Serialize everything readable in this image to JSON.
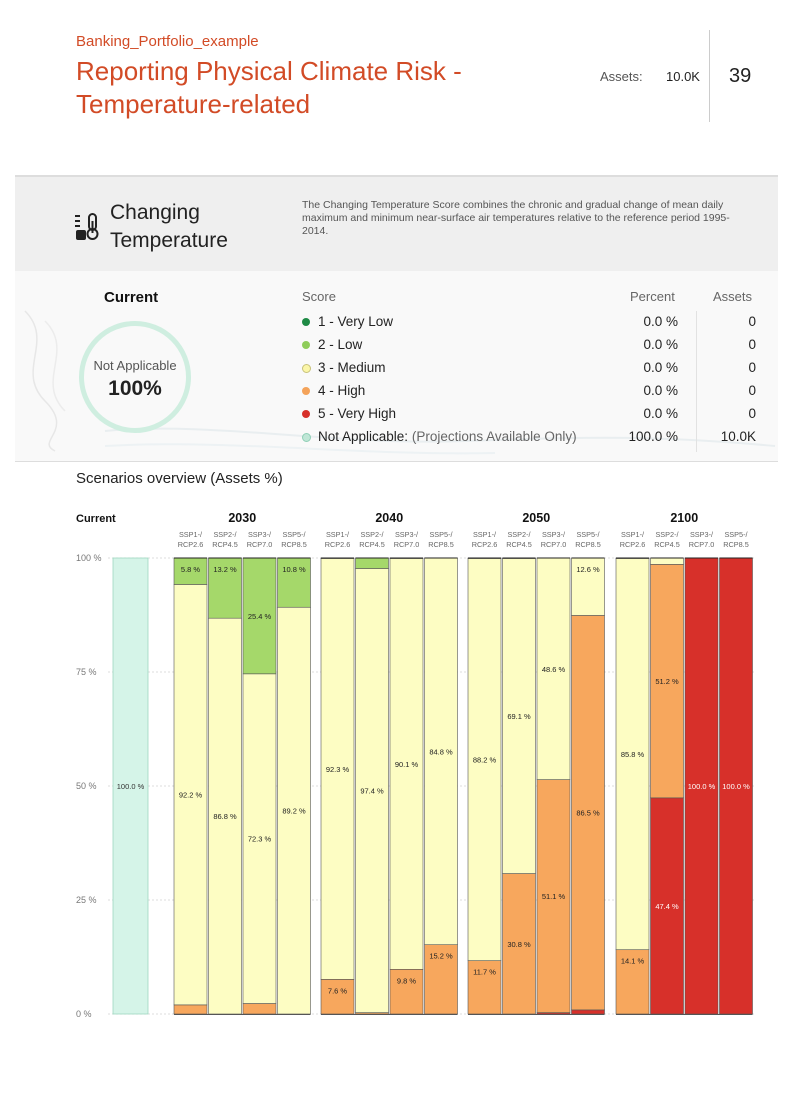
{
  "header": {
    "subtitle": "Banking_Portfolio_example",
    "title": "Reporting Physical Climate Risk - Temperature-related",
    "assets_label": "Assets:",
    "assets_value": "10.0K",
    "page_number": "39"
  },
  "hazard": {
    "name": "Changing Temperature",
    "icon": "thermometer-icon",
    "description": "The Changing Temperature Score combines the chronic and gradual change of mean daily maximum and minimum near-surface air temperatures relative to the reference period 1995-2014."
  },
  "current": {
    "title": "Current",
    "ring_label": "Not Applicable",
    "ring_value": "100%"
  },
  "score_table": {
    "headers": {
      "score": "Score",
      "percent": "Percent",
      "assets": "Assets"
    },
    "rows": [
      {
        "label": "1 - Very Low",
        "note": "",
        "percent": "0.0 %",
        "assets": "0",
        "color": "#1e8a45",
        "hollow": false
      },
      {
        "label": "2 - Low",
        "note": "",
        "percent": "0.0 %",
        "assets": "0",
        "color": "#8fcd5a",
        "hollow": false
      },
      {
        "label": "3 - Medium",
        "note": "",
        "percent": "0.0 %",
        "assets": "0",
        "color": "#fbf6a8",
        "hollow": true
      },
      {
        "label": "4 - High",
        "note": "",
        "percent": "0.0 %",
        "assets": "0",
        "color": "#f4a35a",
        "hollow": false
      },
      {
        "label": "5 - Very High",
        "note": "",
        "percent": "0.0 %",
        "assets": "0",
        "color": "#d7302a",
        "hollow": false
      },
      {
        "label": "Not Applicable:",
        "note": "(Projections Available Only)",
        "percent": "100.0 %",
        "assets": "10.0K",
        "color": "#bfe6d6",
        "hollow": true
      }
    ]
  },
  "scenarios_title": "Scenarios overview (Assets %)",
  "chart_data": {
    "type": "bar",
    "stacked": true,
    "title": "Scenarios overview (Assets %)",
    "ylim": [
      0,
      100
    ],
    "y_ticks": [
      "0 %",
      "25 %",
      "50 %",
      "75 %",
      "100 %"
    ],
    "y_tick_values": [
      0,
      25,
      50,
      75,
      100
    ],
    "category_colors": {
      "Very Low": "#1e8a45",
      "Low": "#a5d86a",
      "Medium": "#fdfdc3",
      "High": "#f7a75d",
      "Very High": "#d7302a",
      "Not Applicable": "#d5f4e8"
    },
    "current": {
      "label": "Current",
      "segments": [
        {
          "category": "Not Applicable",
          "value": 100.0,
          "label": "100.0 %"
        }
      ]
    },
    "groups": [
      {
        "year": "2030",
        "bars": [
          {
            "scenario": [
              "SSP1-/",
              "RCP2.6"
            ],
            "segments": [
              {
                "category": "High",
                "value": 2.0,
                "label": ""
              },
              {
                "category": "Medium",
                "value": 92.2,
                "label": "92.2 %"
              },
              {
                "category": "Low",
                "value": 5.8,
                "label": "5.8 %"
              }
            ]
          },
          {
            "scenario": [
              "SSP2-/",
              "RCP4.5"
            ],
            "segments": [
              {
                "category": "Medium",
                "value": 86.8,
                "label": "86.8 %"
              },
              {
                "category": "Low",
                "value": 13.2,
                "label": "13.2 %"
              }
            ]
          },
          {
            "scenario": [
              "SSP3-/",
              "RCP7.0"
            ],
            "segments": [
              {
                "category": "High",
                "value": 2.3,
                "label": ""
              },
              {
                "category": "Medium",
                "value": 72.3,
                "label": "72.3 %"
              },
              {
                "category": "Low",
                "value": 25.4,
                "label": "25.4 %"
              }
            ]
          },
          {
            "scenario": [
              "SSP5-/",
              "RCP8.5"
            ],
            "segments": [
              {
                "category": "Medium",
                "value": 89.2,
                "label": "89.2 %"
              },
              {
                "category": "Low",
                "value": 10.8,
                "label": "10.8 %"
              }
            ]
          }
        ]
      },
      {
        "year": "2040",
        "bars": [
          {
            "scenario": [
              "SSP1-/",
              "RCP2.6"
            ],
            "segments": [
              {
                "category": "High",
                "value": 7.6,
                "label": "7.6 %"
              },
              {
                "category": "Medium",
                "value": 92.3,
                "label": "92.3 %"
              },
              {
                "category": "Low",
                "value": 0.1,
                "label": ""
              }
            ]
          },
          {
            "scenario": [
              "SSP2-/",
              "RCP4.5"
            ],
            "segments": [
              {
                "category": "High",
                "value": 0.3,
                "label": ""
              },
              {
                "category": "Medium",
                "value": 97.4,
                "label": "97.4 %"
              },
              {
                "category": "Low",
                "value": 2.3,
                "label": ""
              }
            ]
          },
          {
            "scenario": [
              "SSP3-/",
              "RCP7.0"
            ],
            "segments": [
              {
                "category": "High",
                "value": 9.8,
                "label": "9.8 %"
              },
              {
                "category": "Medium",
                "value": 90.1,
                "label": "90.1 %"
              },
              {
                "category": "Low",
                "value": 0.1,
                "label": ""
              }
            ]
          },
          {
            "scenario": [
              "SSP5-/",
              "RCP8.5"
            ],
            "segments": [
              {
                "category": "High",
                "value": 15.2,
                "label": "15.2 %"
              },
              {
                "category": "Medium",
                "value": 84.8,
                "label": "84.8 %"
              }
            ]
          }
        ]
      },
      {
        "year": "2050",
        "bars": [
          {
            "scenario": [
              "SSP1-/",
              "RCP2.6"
            ],
            "segments": [
              {
                "category": "High",
                "value": 11.7,
                "label": "11.7 %"
              },
              {
                "category": "Medium",
                "value": 88.2,
                "label": "88.2 %"
              },
              {
                "category": "Low",
                "value": 0.1,
                "label": ""
              }
            ]
          },
          {
            "scenario": [
              "SSP2-/",
              "RCP4.5"
            ],
            "segments": [
              {
                "category": "High",
                "value": 30.8,
                "label": "30.8 %"
              },
              {
                "category": "Medium",
                "value": 69.1,
                "label": "69.1 %"
              },
              {
                "category": "Low",
                "value": 0.1,
                "label": ""
              }
            ]
          },
          {
            "scenario": [
              "SSP3-/",
              "RCP7.0"
            ],
            "segments": [
              {
                "category": "Very High",
                "value": 0.3,
                "label": ""
              },
              {
                "category": "High",
                "value": 51.1,
                "label": "51.1 %"
              },
              {
                "category": "Medium",
                "value": 48.6,
                "label": "48.6 %"
              }
            ]
          },
          {
            "scenario": [
              "SSP5-/",
              "RCP8.5"
            ],
            "segments": [
              {
                "category": "Very High",
                "value": 0.9,
                "label": ""
              },
              {
                "category": "High",
                "value": 86.5,
                "label": "86.5 %"
              },
              {
                "category": "Medium",
                "value": 12.6,
                "label": "12.6 %"
              }
            ]
          }
        ]
      },
      {
        "year": "2100",
        "bars": [
          {
            "scenario": [
              "SSP1-/",
              "RCP2.6"
            ],
            "segments": [
              {
                "category": "High",
                "value": 14.1,
                "label": "14.1 %"
              },
              {
                "category": "Medium",
                "value": 85.8,
                "label": "85.8 %"
              },
              {
                "category": "Low",
                "value": 0.1,
                "label": ""
              }
            ]
          },
          {
            "scenario": [
              "SSP2-/",
              "RCP4.5"
            ],
            "segments": [
              {
                "category": "Very High",
                "value": 47.4,
                "label": "47.4 %"
              },
              {
                "category": "High",
                "value": 51.2,
                "label": "51.2 %"
              },
              {
                "category": "Medium",
                "value": 1.4,
                "label": ""
              }
            ]
          },
          {
            "scenario": [
              "SSP3-/",
              "RCP7.0"
            ],
            "segments": [
              {
                "category": "Very High",
                "value": 100.0,
                "label": "100.0 %"
              }
            ]
          },
          {
            "scenario": [
              "SSP5-/",
              "RCP8.5"
            ],
            "segments": [
              {
                "category": "Very High",
                "value": 100.0,
                "label": "100.0 %"
              }
            ]
          }
        ]
      }
    ]
  }
}
